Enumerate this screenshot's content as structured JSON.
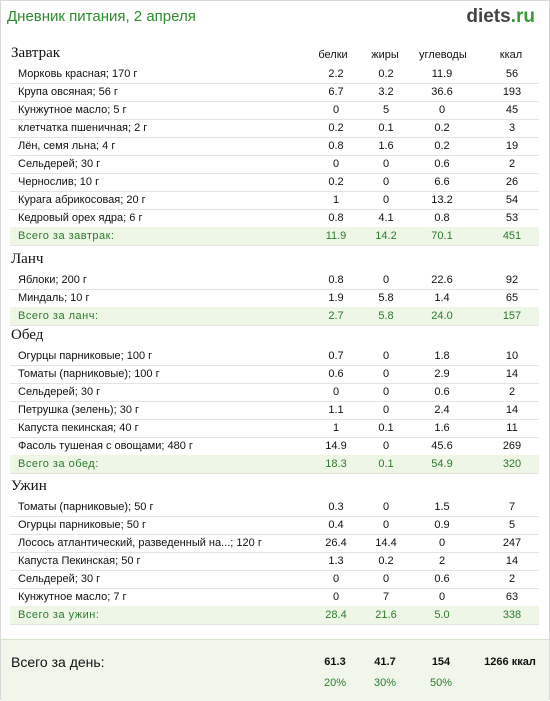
{
  "header": {
    "title": "Дневник питания, 2 апреля",
    "logo_main": "diets",
    "logo_tld": ".ru"
  },
  "columns": {
    "protein": "белки",
    "fat": "жиры",
    "carbs": "углеводы",
    "kcal": "ккал"
  },
  "sections": [
    {
      "title": "Завтрак",
      "items": [
        {
          "name": "Морковь красная; 170 г",
          "p": "2.2",
          "f": "0.2",
          "c": "11.9",
          "k": "56"
        },
        {
          "name": "Крупа овсяная; 56 г",
          "p": "6.7",
          "f": "3.2",
          "c": "36.6",
          "k": "193"
        },
        {
          "name": "Кунжутное масло; 5 г",
          "p": "0",
          "f": "5",
          "c": "0",
          "k": "45"
        },
        {
          "name": "клетчатка пшеничная; 2 г",
          "p": "0.2",
          "f": "0.1",
          "c": "0.2",
          "k": "3"
        },
        {
          "name": "Лён, семя льна; 4 г",
          "p": "0.8",
          "f": "1.6",
          "c": "0.2",
          "k": "19"
        },
        {
          "name": "Сельдерей; 30 г",
          "p": "0",
          "f": "0",
          "c": "0.6",
          "k": "2"
        },
        {
          "name": "Чернослив; 10 г",
          "p": "0.2",
          "f": "0",
          "c": "6.6",
          "k": "26"
        },
        {
          "name": "Курага абрикосовая; 20 г",
          "p": "1",
          "f": "0",
          "c": "13.2",
          "k": "54"
        },
        {
          "name": "Кедровый орех ядра; 6 г",
          "p": "0.8",
          "f": "4.1",
          "c": "0.8",
          "k": "53"
        }
      ],
      "total": {
        "name": "Всего за завтрак:",
        "p": "11.9",
        "f": "14.2",
        "c": "70.1",
        "k": "451"
      }
    },
    {
      "title": "Ланч",
      "items": [
        {
          "name": "Яблоки; 200 г",
          "p": "0.8",
          "f": "0",
          "c": "22.6",
          "k": "92"
        },
        {
          "name": "Миндаль; 10 г",
          "p": "1.9",
          "f": "5.8",
          "c": "1.4",
          "k": "65"
        }
      ],
      "total": {
        "name": "Всего за ланч:",
        "p": "2.7",
        "f": "5.8",
        "c": "24.0",
        "k": "157"
      }
    },
    {
      "title": "Обед",
      "items": [
        {
          "name": "Огурцы парниковые; 100 г",
          "p": "0.7",
          "f": "0",
          "c": "1.8",
          "k": "10"
        },
        {
          "name": "Томаты (парниковые); 100 г",
          "p": "0.6",
          "f": "0",
          "c": "2.9",
          "k": "14"
        },
        {
          "name": "Сельдерей; 30 г",
          "p": "0",
          "f": "0",
          "c": "0.6",
          "k": "2"
        },
        {
          "name": "Петрушка (зелень); 30 г",
          "p": "1.1",
          "f": "0",
          "c": "2.4",
          "k": "14"
        },
        {
          "name": "Капуста пекинская; 40 г",
          "p": "1",
          "f": "0.1",
          "c": "1.6",
          "k": "11"
        },
        {
          "name": "Фасоль тушеная с овощами; 480 г",
          "p": "14.9",
          "f": "0",
          "c": "45.6",
          "k": "269"
        }
      ],
      "total": {
        "name": "Всего за обед:",
        "p": "18.3",
        "f": "0.1",
        "c": "54.9",
        "k": "320"
      }
    },
    {
      "title": "Ужин",
      "items": [
        {
          "name": "Томаты (парниковые); 50 г",
          "p": "0.3",
          "f": "0",
          "c": "1.5",
          "k": "7"
        },
        {
          "name": "Огурцы парниковые; 50 г",
          "p": "0.4",
          "f": "0",
          "c": "0.9",
          "k": "5"
        },
        {
          "name": "Лосось атлантический, разведенный на...; 120 г",
          "p": "26.4",
          "f": "14.4",
          "c": "0",
          "k": "247"
        },
        {
          "name": "Капуста Пекинская; 50 г",
          "p": "1.3",
          "f": "0.2",
          "c": "2",
          "k": "14"
        },
        {
          "name": "Сельдерей; 30 г",
          "p": "0",
          "f": "0",
          "c": "0.6",
          "k": "2"
        },
        {
          "name": "Кунжутное масло; 7 г",
          "p": "0",
          "f": "7",
          "c": "0",
          "k": "63"
        }
      ],
      "total": {
        "name": "Всего за ужин:",
        "p": "28.4",
        "f": "21.6",
        "c": "5.0",
        "k": "338"
      }
    }
  ],
  "day": {
    "label": "Всего за день:",
    "protein": "61.3",
    "fat": "41.7",
    "carbs": "154",
    "kcal": "1266 ккал",
    "protein_pct": "20%",
    "fat_pct": "30%",
    "carbs_pct": "50%"
  }
}
